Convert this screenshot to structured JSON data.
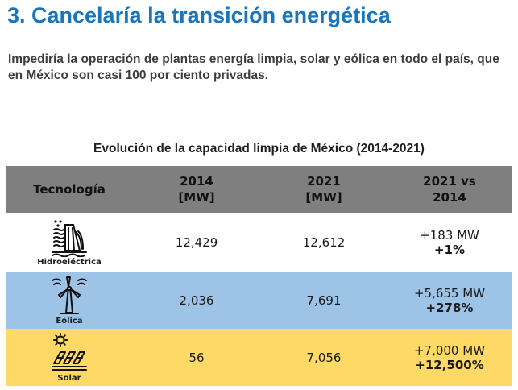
{
  "heading": {
    "title": "3. Cancelaría la transición energética",
    "subtitle": "Impediría la operación de plantas energía limpia, solar y eólica en todo el país, que en México son casi 100 por ciento privadas."
  },
  "table": {
    "caption": "Evolución de la capacidad limpia de México (2014-2021)",
    "headers": {
      "tech": "Tecnología",
      "y2014_line1": "2014",
      "y2014_line2": "[MW]",
      "y2021_line1": "2021",
      "y2021_line2": "[MW]",
      "diff_line1": "2021 vs",
      "diff_line2": "2014"
    },
    "rows": [
      {
        "name": "Hidroeléctrica",
        "icon": "hydro-dam-icon",
        "v2014": "12,429",
        "v2021": "12,612",
        "change_mw": "+183 MW",
        "change_pct": "+1%",
        "color": "#ffffff"
      },
      {
        "name": "Eólica",
        "icon": "wind-turbine-icon",
        "v2014": "2,036",
        "v2021": "7,691",
        "change_mw": "+5,655 MW",
        "change_pct": "+278%",
        "color": "#9dc3e6"
      },
      {
        "name": "Solar",
        "icon": "solar-panel-icon",
        "v2014": "56",
        "v2021": "7,056",
        "change_mw": "+7,000 MW",
        "change_pct": "+12,500%",
        "color": "#ffd966"
      }
    ]
  },
  "colors": {
    "title": "#1b75bb",
    "header_bg": "#7f7f7f"
  }
}
